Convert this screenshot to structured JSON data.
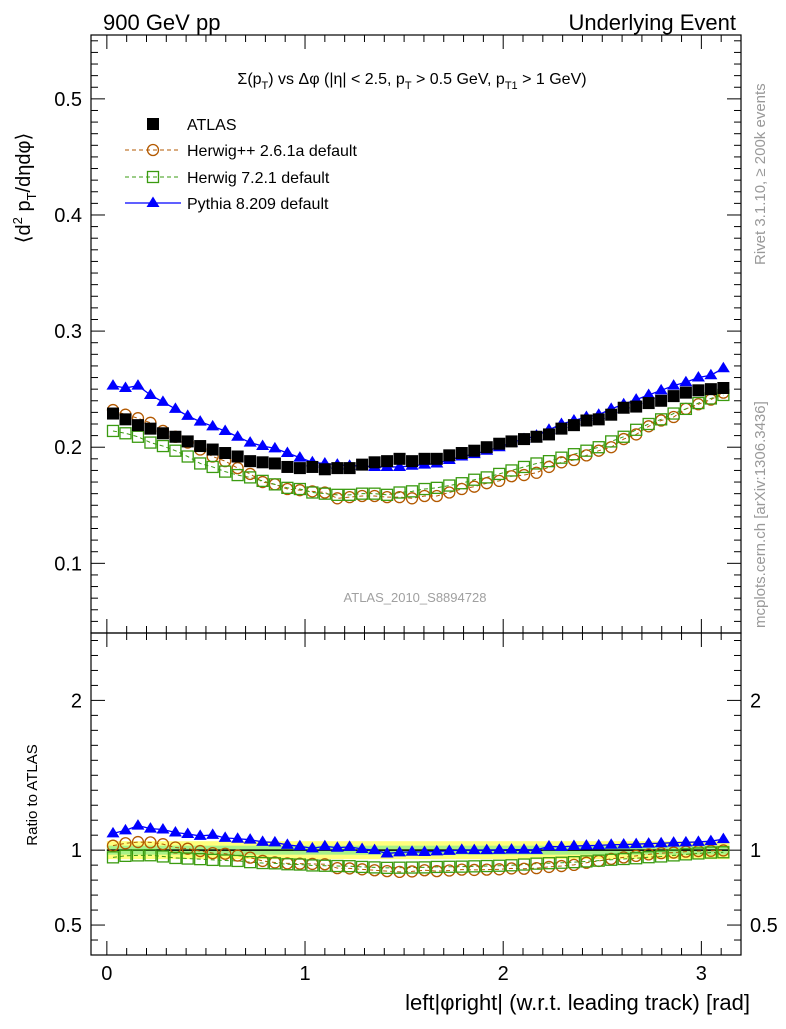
{
  "header": {
    "left": "900 GeV pp",
    "right": "Underlying Event"
  },
  "side_labels": {
    "rivet": "Rivet 3.1.10, ≥ 200k events",
    "source": "mcplots.cern.ch [arXiv:1306.3436]"
  },
  "chart_data": {
    "type": "scatter",
    "title": "Σ(p_T) vs Δφ (|η| < 2.5, p_T > 0.5 GeV, p_T1 > 1 GeV)",
    "analysis_id": "ATLAS_2010_S8894728",
    "xlabel": "left|φright| (w.r.t. leading track) [rad]",
    "ylabel_main": "⟨d² p_T/dηdφ⟩",
    "ylabel_ratio": "Ratio to ATLAS",
    "xlim": [
      -0.08,
      3.2
    ],
    "main_ylim": [
      0.04,
      0.555
    ],
    "ratio_ylim": [
      0.3,
      2.45
    ],
    "x_ticks": [
      0,
      1,
      2,
      3
    ],
    "main_y_ticks": [
      0.1,
      0.2,
      0.3,
      0.4,
      0.5
    ],
    "ratio_y_ticks": [
      0.5,
      1,
      2
    ],
    "legend_position": "top-left",
    "x": [
      0.031,
      0.094,
      0.157,
      0.22,
      0.283,
      0.346,
      0.408,
      0.471,
      0.534,
      0.597,
      0.66,
      0.723,
      0.786,
      0.848,
      0.911,
      0.974,
      1.037,
      1.1,
      1.163,
      1.225,
      1.288,
      1.351,
      1.414,
      1.477,
      1.54,
      1.603,
      1.665,
      1.728,
      1.791,
      1.854,
      1.917,
      1.98,
      2.042,
      2.105,
      2.168,
      2.231,
      2.294,
      2.357,
      2.42,
      2.482,
      2.545,
      2.608,
      2.671,
      2.734,
      2.797,
      2.86,
      2.922,
      2.985,
      3.048,
      3.111
    ],
    "series": [
      {
        "name": "ATLAS",
        "color": "#000000",
        "marker": "filled-square",
        "values": [
          0.229,
          0.224,
          0.219,
          0.216,
          0.212,
          0.209,
          0.205,
          0.201,
          0.198,
          0.195,
          0.192,
          0.188,
          0.187,
          0.186,
          0.183,
          0.182,
          0.183,
          0.181,
          0.182,
          0.182,
          0.185,
          0.187,
          0.188,
          0.19,
          0.188,
          0.19,
          0.19,
          0.193,
          0.195,
          0.197,
          0.2,
          0.203,
          0.205,
          0.207,
          0.209,
          0.211,
          0.216,
          0.219,
          0.223,
          0.224,
          0.228,
          0.234,
          0.235,
          0.238,
          0.24,
          0.244,
          0.247,
          0.249,
          0.25,
          0.251
        ],
        "ratio": [
          1,
          1,
          1,
          1,
          1,
          1,
          1,
          1,
          1,
          1,
          1,
          1,
          1,
          1,
          1,
          1,
          1,
          1,
          1,
          1,
          1,
          1,
          1,
          1,
          1,
          1,
          1,
          1,
          1,
          1,
          1,
          1,
          1,
          1,
          1,
          1,
          1,
          1,
          1,
          1,
          1,
          1,
          1,
          1,
          1,
          1,
          1,
          1,
          1,
          1
        ]
      },
      {
        "name": "Herwig++ 2.6.1a default",
        "color": "#b35900",
        "marker": "open-circle",
        "line": "dashed",
        "values": [
          0.232,
          0.228,
          0.225,
          0.221,
          0.214,
          0.209,
          0.204,
          0.198,
          0.192,
          0.188,
          0.182,
          0.177,
          0.17,
          0.168,
          0.164,
          0.163,
          0.162,
          0.161,
          0.156,
          0.157,
          0.158,
          0.158,
          0.157,
          0.157,
          0.156,
          0.158,
          0.158,
          0.161,
          0.164,
          0.166,
          0.169,
          0.171,
          0.175,
          0.176,
          0.178,
          0.183,
          0.187,
          0.189,
          0.193,
          0.197,
          0.2,
          0.207,
          0.211,
          0.218,
          0.223,
          0.226,
          0.233,
          0.237,
          0.241,
          0.247
        ],
        "ratio": [
          1.03,
          1.046,
          1.054,
          1.052,
          1.04,
          1.018,
          1.01,
          0.994,
          0.98,
          0.976,
          0.964,
          0.95,
          0.928,
          0.918,
          0.912,
          0.91,
          0.908,
          0.906,
          0.88,
          0.878,
          0.872,
          0.866,
          0.86,
          0.855,
          0.858,
          0.866,
          0.86,
          0.864,
          0.87,
          0.868,
          0.87,
          0.872,
          0.878,
          0.876,
          0.88,
          0.888,
          0.894,
          0.902,
          0.916,
          0.928,
          0.942,
          0.952,
          0.962,
          0.972,
          0.98,
          0.984,
          0.99,
          0.994,
          0.996,
          0.998
        ]
      },
      {
        "name": "Herwig 7.2.1 default",
        "color": "#3a9b10",
        "marker": "open-square",
        "line": "dashed",
        "values": [
          0.214,
          0.212,
          0.209,
          0.204,
          0.201,
          0.197,
          0.192,
          0.186,
          0.183,
          0.179,
          0.176,
          0.174,
          0.171,
          0.168,
          0.165,
          0.164,
          0.161,
          0.16,
          0.159,
          0.159,
          0.16,
          0.16,
          0.159,
          0.161,
          0.162,
          0.164,
          0.165,
          0.167,
          0.169,
          0.172,
          0.174,
          0.177,
          0.18,
          0.183,
          0.186,
          0.188,
          0.191,
          0.194,
          0.197,
          0.2,
          0.205,
          0.209,
          0.215,
          0.22,
          0.224,
          0.229,
          0.233,
          0.238,
          0.242,
          0.245
        ],
        "ratio": [
          0.952,
          0.962,
          0.965,
          0.966,
          0.958,
          0.948,
          0.944,
          0.94,
          0.935,
          0.931,
          0.928,
          0.92,
          0.914,
          0.912,
          0.906,
          0.904,
          0.898,
          0.896,
          0.894,
          0.893,
          0.888,
          0.885,
          0.882,
          0.883,
          0.884,
          0.885,
          0.888,
          0.889,
          0.89,
          0.892,
          0.894,
          0.896,
          0.899,
          0.904,
          0.91,
          0.913,
          0.916,
          0.92,
          0.925,
          0.93,
          0.936,
          0.941,
          0.946,
          0.953,
          0.958,
          0.965,
          0.972,
          0.978,
          0.984,
          0.986
        ]
      },
      {
        "name": "Pythia 8.209 default",
        "color": "#0000ff",
        "marker": "filled-triangle",
        "line": "solid",
        "values": [
          0.253,
          0.251,
          0.253,
          0.245,
          0.239,
          0.233,
          0.227,
          0.222,
          0.218,
          0.214,
          0.209,
          0.204,
          0.201,
          0.199,
          0.195,
          0.191,
          0.187,
          0.186,
          0.185,
          0.184,
          0.184,
          0.183,
          0.183,
          0.183,
          0.184,
          0.185,
          0.186,
          0.189,
          0.192,
          0.194,
          0.197,
          0.2,
          0.204,
          0.207,
          0.21,
          0.215,
          0.22,
          0.223,
          0.226,
          0.228,
          0.233,
          0.237,
          0.241,
          0.245,
          0.249,
          0.253,
          0.256,
          0.26,
          0.262,
          0.268
        ],
        "ratio": [
          1.112,
          1.132,
          1.164,
          1.144,
          1.138,
          1.118,
          1.108,
          1.095,
          1.102,
          1.082,
          1.076,
          1.07,
          1.055,
          1.052,
          1.035,
          1.026,
          1.012,
          1.026,
          1.016,
          1.022,
          1.008,
          1.0,
          0.978,
          0.985,
          0.989,
          0.988,
          0.992,
          0.995,
          1.002,
          1.0,
          1.0,
          1.002,
          1.004,
          1.003,
          1.002,
          1.025,
          1.022,
          1.028,
          1.03,
          1.032,
          1.036,
          1.038,
          1.04,
          1.044,
          1.046,
          1.05,
          1.052,
          1.055,
          1.06,
          1.074
        ]
      }
    ],
    "ratio_bands": [
      {
        "name": "total-uncertainty",
        "color": "#ffff66",
        "halfwidth": 0.06
      },
      {
        "name": "stat-uncertainty",
        "color": "#99ee88",
        "halfwidth": 0.03
      }
    ]
  }
}
